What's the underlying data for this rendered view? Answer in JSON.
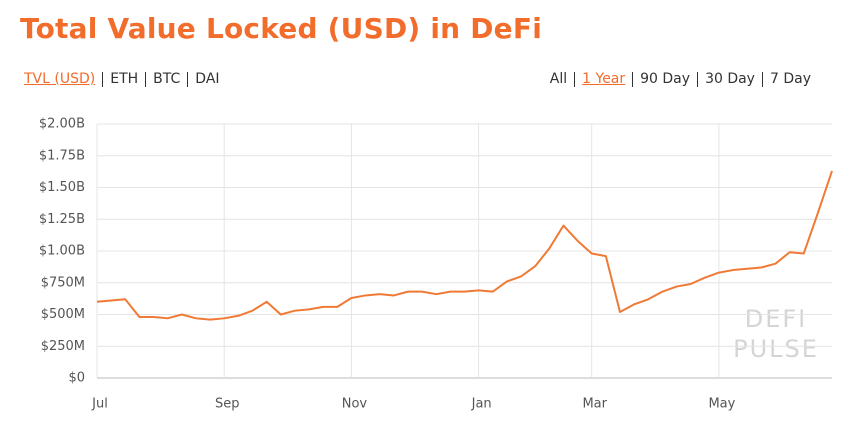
{
  "controls": {
    "assets": [
      "TVL (USD)",
      "ETH",
      "BTC",
      "DAI"
    ],
    "ranges": [
      "All",
      "1 Year",
      "90 Day",
      "30 Day",
      "7 Day"
    ]
  },
  "chart_data": {
    "type": "line",
    "title": "Total Value Locked (USD) in DeFi",
    "watermark": [
      "DEFI",
      "PULSE"
    ],
    "categories": [
      "Jul",
      null,
      null,
      null,
      null,
      null,
      null,
      null,
      null,
      "Sep",
      null,
      null,
      null,
      null,
      null,
      null,
      null,
      null,
      "Nov",
      null,
      null,
      null,
      null,
      null,
      null,
      null,
      null,
      "Jan",
      null,
      null,
      null,
      null,
      null,
      null,
      null,
      "Mar",
      null,
      null,
      null,
      null,
      null,
      null,
      null,
      null,
      "May",
      null,
      null,
      null,
      null,
      null,
      null,
      null,
      null
    ],
    "values": [
      600000000,
      610000000,
      620000000,
      480000000,
      480000000,
      470000000,
      500000000,
      470000000,
      460000000,
      470000000,
      490000000,
      530000000,
      600000000,
      500000000,
      530000000,
      540000000,
      560000000,
      560000000,
      630000000,
      650000000,
      660000000,
      650000000,
      680000000,
      680000000,
      660000000,
      680000000,
      680000000,
      690000000,
      680000000,
      760000000,
      800000000,
      880000000,
      1020000000,
      1200000000,
      1080000000,
      980000000,
      960000000,
      520000000,
      580000000,
      620000000,
      680000000,
      720000000,
      740000000,
      790000000,
      830000000,
      850000000,
      860000000,
      870000000,
      900000000,
      990000000,
      980000000,
      1300000000,
      1630000000
    ],
    "color": "#f07a35",
    "ylim": [
      0,
      2000000000
    ],
    "yticks": [
      {
        "value": 0,
        "label": "$0"
      },
      {
        "value": 250000000,
        "label": "$250M"
      },
      {
        "value": 500000000,
        "label": "$500M"
      },
      {
        "value": 750000000,
        "label": "$750M"
      },
      {
        "value": 1000000000,
        "label": "$1.00B"
      },
      {
        "value": 1250000000,
        "label": "$1.25B"
      },
      {
        "value": 1500000000,
        "label": "$1.50B"
      },
      {
        "value": 1750000000,
        "label": "$1.75B"
      },
      {
        "value": 2000000000,
        "label": "$2.00B"
      }
    ],
    "grid": true
  }
}
